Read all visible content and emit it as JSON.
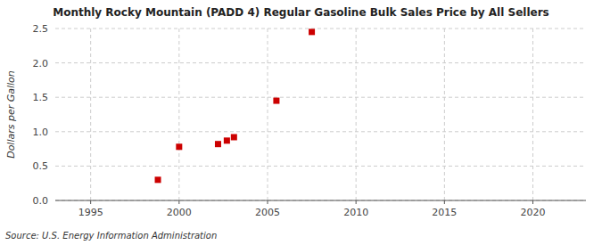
{
  "chart_data": {
    "type": "scatter",
    "title": "Monthly Rocky Mountain (PADD 4) Regular Gasoline Bulk Sales Price by All Sellers",
    "ylabel": "Dollars per Gallon",
    "source": "Source: U.S. Energy Information Administration",
    "x": [
      1998.8,
      2000.0,
      2002.2,
      2002.7,
      2003.1,
      2005.5,
      2007.5
    ],
    "values": [
      0.3,
      0.78,
      0.82,
      0.87,
      0.92,
      1.45,
      2.45
    ],
    "color": "#cc0000",
    "marker": "square",
    "xlim": [
      1993,
      2023
    ],
    "ylim": [
      0.0,
      2.5
    ],
    "xticks": [
      1995,
      2000,
      2005,
      2010,
      2015,
      2020
    ],
    "yticks": [
      {
        "value": 0.0,
        "label": "0.0"
      },
      0.5,
      {
        "value": 1.0,
        "label": "1.0"
      },
      1.5,
      {
        "value": 2.0,
        "label": "2.0"
      },
      2.5
    ],
    "grid": true
  }
}
